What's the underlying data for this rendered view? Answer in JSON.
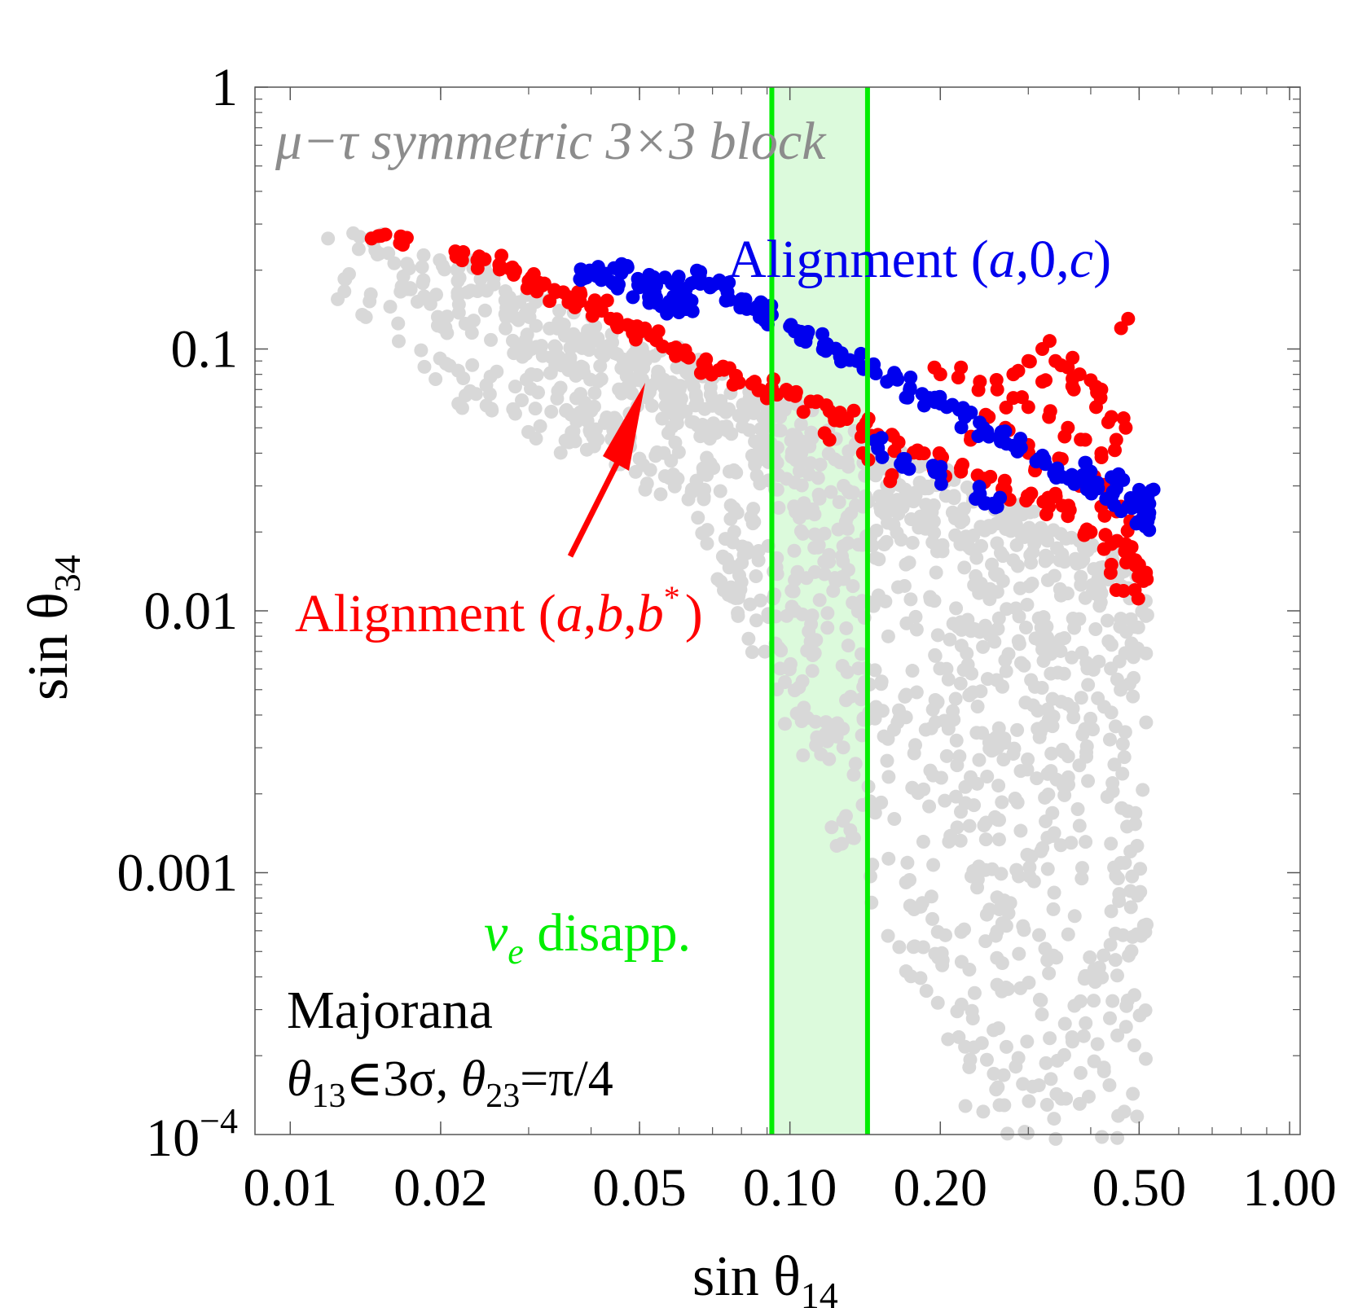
{
  "chart_data": {
    "type": "scatter",
    "xscale": "log",
    "yscale": "log",
    "xlim": [
      0.0085,
      1.05
    ],
    "ylim": [
      0.0001,
      1
    ],
    "xlabel": "sin θ",
    "xlabel_sub": "14",
    "ylabel": "sin θ",
    "ylabel_sub": "34",
    "x_ticks": [
      {
        "value": 0.01,
        "label": "0.01"
      },
      {
        "value": 0.02,
        "label": "0.02"
      },
      {
        "value": 0.05,
        "label": "0.05"
      },
      {
        "value": 0.1,
        "label": "0.10"
      },
      {
        "value": 0.2,
        "label": "0.20"
      },
      {
        "value": 0.5,
        "label": "0.50"
      },
      {
        "value": 1.0,
        "label": "1.00"
      }
    ],
    "y_ticks": [
      {
        "value": 1,
        "label": "1"
      },
      {
        "value": 0.1,
        "label": "0.1"
      },
      {
        "value": 0.01,
        "label": "0.01"
      },
      {
        "value": 0.001,
        "label": "0.001"
      }
    ],
    "y_tick_bottom": {
      "value": 0.0001,
      "base": "10",
      "exp": "−4"
    },
    "band": {
      "name": "νe disapp.",
      "x_low": 0.092,
      "x_high": 0.143,
      "color": "#00ee00",
      "fill": "#dcfadc"
    },
    "colors": {
      "background_points": "#d8d8d8",
      "red": "#ff0000",
      "blue": "#0000ee",
      "green": "#00ee00",
      "label_gray": "#8c8c8c"
    },
    "series": [
      {
        "name": "Alignment (a,b,b*)",
        "color": "#ff0000",
        "points": [
          [
            0.015,
            0.27
          ],
          [
            0.0168,
            0.25
          ],
          [
            0.0215,
            0.225
          ],
          [
            0.0245,
            0.22
          ],
          [
            0.0262,
            0.21
          ],
          [
            0.028,
            0.192
          ],
          [
            0.03,
            0.182
          ],
          [
            0.032,
            0.175
          ],
          [
            0.034,
            0.165
          ],
          [
            0.036,
            0.158
          ],
          [
            0.038,
            0.152
          ],
          [
            0.04,
            0.145
          ],
          [
            0.042,
            0.14
          ],
          [
            0.045,
            0.13
          ],
          [
            0.048,
            0.122
          ],
          [
            0.05,
            0.116
          ],
          [
            0.054,
            0.108
          ],
          [
            0.058,
            0.1
          ],
          [
            0.062,
            0.094
          ],
          [
            0.067,
            0.088
          ],
          [
            0.072,
            0.083
          ],
          [
            0.078,
            0.079
          ],
          [
            0.085,
            0.075
          ],
          [
            0.092,
            0.071
          ],
          [
            0.1,
            0.067
          ],
          [
            0.11,
            0.063
          ],
          [
            0.12,
            0.058
          ],
          [
            0.13,
            0.054
          ],
          [
            0.14,
            0.05
          ],
          [
            0.15,
            0.047
          ],
          [
            0.165,
            0.044
          ],
          [
            0.18,
            0.041
          ],
          [
            0.2,
            0.037
          ],
          [
            0.22,
            0.034
          ],
          [
            0.245,
            0.031
          ],
          [
            0.27,
            0.029
          ],
          [
            0.3,
            0.027
          ],
          [
            0.33,
            0.025
          ],
          [
            0.36,
            0.023
          ],
          [
            0.4,
            0.02
          ],
          [
            0.44,
            0.018
          ],
          [
            0.48,
            0.016
          ],
          [
            0.51,
            0.013
          ]
        ],
        "cluster_points": [
          [
            0.2,
            0.08
          ],
          [
            0.22,
            0.085
          ],
          [
            0.24,
            0.075
          ],
          [
            0.26,
            0.07
          ],
          [
            0.28,
            0.08
          ],
          [
            0.3,
            0.09
          ],
          [
            0.32,
            0.1
          ],
          [
            0.34,
            0.09
          ],
          [
            0.36,
            0.085
          ],
          [
            0.38,
            0.08
          ],
          [
            0.4,
            0.076
          ],
          [
            0.42,
            0.07
          ],
          [
            0.3,
            0.06
          ],
          [
            0.33,
            0.055
          ],
          [
            0.36,
            0.05
          ],
          [
            0.39,
            0.045
          ],
          [
            0.42,
            0.04
          ],
          [
            0.45,
            0.045
          ],
          [
            0.46,
            0.12
          ],
          [
            0.27,
            0.05
          ],
          [
            0.3,
            0.043
          ],
          [
            0.35,
            0.038
          ],
          [
            0.4,
            0.033
          ],
          [
            0.43,
            0.03
          ],
          [
            0.46,
            0.025
          ],
          [
            0.48,
            0.022
          ],
          [
            0.5,
            0.015
          ],
          [
            0.47,
            0.018
          ],
          [
            0.44,
            0.015
          ],
          [
            0.45,
            0.012
          ],
          [
            0.49,
            0.012
          ],
          [
            0.23,
            0.045
          ],
          [
            0.25,
            0.055
          ],
          [
            0.28,
            0.065
          ],
          [
            0.32,
            0.075
          ],
          [
            0.37,
            0.07
          ],
          [
            0.41,
            0.06
          ],
          [
            0.44,
            0.055
          ],
          [
            0.47,
            0.05
          ],
          [
            0.2,
            0.035
          ],
          [
            0.16,
            0.033
          ],
          [
            0.14,
            0.04
          ],
          [
            0.12,
            0.045
          ],
          [
            0.31,
            0.035
          ],
          [
            0.38,
            0.03
          ],
          [
            0.42,
            0.025
          ],
          [
            0.34,
            0.028
          ]
        ]
      },
      {
        "name": "Alignment (a,0,c)",
        "color": "#0000ee",
        "points": [
          [
            0.038,
            0.185
          ],
          [
            0.041,
            0.19
          ],
          [
            0.044,
            0.18
          ],
          [
            0.046,
            0.195
          ],
          [
            0.05,
            0.172
          ],
          [
            0.054,
            0.175
          ],
          [
            0.058,
            0.178
          ],
          [
            0.062,
            0.17
          ],
          [
            0.066,
            0.19
          ],
          [
            0.07,
            0.175
          ],
          [
            0.075,
            0.165
          ],
          [
            0.08,
            0.155
          ],
          [
            0.086,
            0.145
          ],
          [
            0.092,
            0.135
          ],
          [
            0.1,
            0.122
          ],
          [
            0.108,
            0.112
          ],
          [
            0.117,
            0.104
          ],
          [
            0.126,
            0.096
          ],
          [
            0.136,
            0.09
          ],
          [
            0.147,
            0.084
          ],
          [
            0.16,
            0.077
          ],
          [
            0.174,
            0.071
          ],
          [
            0.19,
            0.065
          ],
          [
            0.206,
            0.06
          ],
          [
            0.224,
            0.055
          ],
          [
            0.244,
            0.05
          ],
          [
            0.266,
            0.046
          ],
          [
            0.29,
            0.042
          ],
          [
            0.315,
            0.038
          ],
          [
            0.343,
            0.035
          ],
          [
            0.373,
            0.032
          ],
          [
            0.406,
            0.029
          ],
          [
            0.44,
            0.027
          ],
          [
            0.475,
            0.025
          ],
          [
            0.51,
            0.023
          ],
          [
            0.054,
            0.15
          ],
          [
            0.058,
            0.145
          ],
          [
            0.062,
            0.142
          ],
          [
            0.15,
            0.042
          ],
          [
            0.17,
            0.038
          ],
          [
            0.2,
            0.033
          ],
          [
            0.24,
            0.028
          ],
          [
            0.26,
            0.025
          ],
          [
            0.52,
            0.022
          ],
          [
            0.52,
            0.027
          ],
          [
            0.5,
            0.029
          ],
          [
            0.45,
            0.031
          ],
          [
            0.4,
            0.034
          ]
        ]
      }
    ],
    "background_points_description_count": 1500,
    "labels": {
      "title": "μ−τ symmetric 3×3 block",
      "blue_main": "Alignment (",
      "blue_a": "a",
      "blue_mid": ",0,",
      "blue_c": "c",
      "blue_end": ")",
      "red_main": "Alignment (",
      "red_a": "a",
      "red_b": "b",
      "red_sep": ",",
      "red_star": "*",
      "red_end": ")",
      "nu": "ν",
      "nu_sub": "e",
      "nu_rest": " disapp.",
      "majorana": "Majorana",
      "theta": "θ",
      "t13_sub": "13",
      "t13_rest": "∈3σ, ",
      "t23_sub": "23",
      "t23_rest": "=π/4"
    }
  }
}
